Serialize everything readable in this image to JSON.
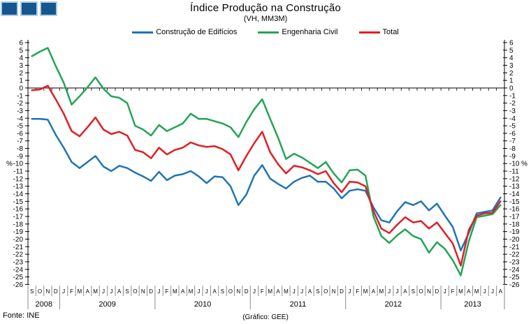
{
  "logo": {
    "count": 3,
    "fill": "#15568C",
    "border": "#AECDE4"
  },
  "title": "Índice Produção na Construção",
  "subtitle": "(VH, MM3M)",
  "legend": [
    {
      "label": "Construção de Edifícios",
      "color": "#1F74B4"
    },
    {
      "label": "Engenharia Civil",
      "color": "#23A455"
    },
    {
      "label": "Total",
      "color": "#E01F24"
    }
  ],
  "footer": {
    "source": "Fonte: INE",
    "credit": "(Gráfico: GEE)"
  },
  "chart_data": {
    "type": "line",
    "title": "Índice Produção na Construção",
    "subtitle": "(VH, MM3M)",
    "unit": "%",
    "ylim": [
      -26,
      6
    ],
    "ytick_step": 1,
    "grid": false,
    "legend_position": "top",
    "x_months": [
      "S",
      "O",
      "N",
      "D",
      "J",
      "F",
      "M",
      "A",
      "M",
      "J",
      "J",
      "A",
      "S",
      "O",
      "N",
      "D",
      "J",
      "F",
      "M",
      "A",
      "M",
      "J",
      "J",
      "A",
      "S",
      "O",
      "N",
      "D",
      "J",
      "F",
      "M",
      "A",
      "M",
      "J",
      "J",
      "A",
      "S",
      "O",
      "N",
      "D",
      "J",
      "F",
      "M",
      "A",
      "M",
      "J",
      "J",
      "A",
      "S",
      "O",
      "N",
      "D",
      "J",
      "F",
      "M",
      "A",
      "M",
      "J",
      "J",
      "A"
    ],
    "years": [
      {
        "label": "2008",
        "start": 0,
        "count": 4
      },
      {
        "label": "2009",
        "start": 4,
        "count": 12
      },
      {
        "label": "2010",
        "start": 16,
        "count": 12
      },
      {
        "label": "2011",
        "start": 28,
        "count": 12
      },
      {
        "label": "2012",
        "start": 40,
        "count": 12
      },
      {
        "label": "2013",
        "start": 52,
        "count": 8
      }
    ],
    "series": [
      {
        "name": "Construção de Edifícios",
        "color": "#1F74B4",
        "values": [
          -4.1,
          -4.1,
          -4.2,
          -6.2,
          -7.9,
          -9.8,
          -10.6,
          -9.8,
          -9.0,
          -10.4,
          -11.0,
          -10.3,
          -10.6,
          -11.2,
          -11.7,
          -12.3,
          -11.1,
          -12.2,
          -11.6,
          -11.4,
          -11.0,
          -11.7,
          -12.6,
          -11.7,
          -11.8,
          -13.0,
          -15.5,
          -14.1,
          -11.6,
          -10.2,
          -12.0,
          -12.7,
          -13.3,
          -12.4,
          -11.9,
          -11.6,
          -12.4,
          -12.4,
          -13.3,
          -14.6,
          -13.6,
          -13.4,
          -13.6,
          -15.8,
          -17.5,
          -17.8,
          -16.3,
          -15.1,
          -15.5,
          -15.0,
          -16.2,
          -15.3,
          -16.9,
          -18.4,
          -21.5,
          -19.2,
          -16.6,
          -16.4,
          -16.2,
          -14.5
        ]
      },
      {
        "name": "Engenharia Civil",
        "color": "#23A455",
        "values": [
          4.2,
          4.8,
          5.3,
          2.9,
          0.7,
          -2.2,
          -1.1,
          0.1,
          1.4,
          -0.1,
          -1.1,
          -1.3,
          -2.0,
          -5.0,
          -5.5,
          -6.3,
          -4.9,
          -5.7,
          -5.2,
          -4.7,
          -3.4,
          -4.1,
          -4.1,
          -4.4,
          -4.7,
          -5.2,
          -6.5,
          -4.5,
          -2.8,
          -1.5,
          -4.1,
          -6.6,
          -9.4,
          -8.7,
          -9.2,
          -9.9,
          -10.6,
          -9.8,
          -11.3,
          -12.5,
          -10.9,
          -10.8,
          -11.6,
          -17.0,
          -19.6,
          -20.5,
          -19.5,
          -18.7,
          -19.6,
          -20.0,
          -21.8,
          -20.4,
          -21.3,
          -22.8,
          -24.8,
          -20.3,
          -17.1,
          -16.9,
          -16.7,
          -15.5
        ]
      },
      {
        "name": "Total",
        "color": "#E01F24",
        "values": [
          -0.3,
          -0.2,
          0.3,
          -1.5,
          -3.4,
          -5.7,
          -6.4,
          -5.2,
          -3.9,
          -5.5,
          -6.1,
          -5.8,
          -6.3,
          -8.2,
          -8.5,
          -9.3,
          -7.9,
          -8.8,
          -8.2,
          -7.9,
          -7.2,
          -7.6,
          -7.8,
          -7.7,
          -8.1,
          -8.8,
          -10.9,
          -9.0,
          -7.3,
          -5.8,
          -8.5,
          -10.1,
          -11.3,
          -10.3,
          -10.5,
          -10.9,
          -11.4,
          -11.0,
          -12.6,
          -13.8,
          -12.4,
          -12.5,
          -13.0,
          -16.3,
          -18.6,
          -19.2,
          -18.1,
          -17.1,
          -17.8,
          -17.6,
          -18.6,
          -17.8,
          -19.2,
          -20.6,
          -23.5,
          -18.8,
          -16.9,
          -16.6,
          -16.5,
          -15.0
        ]
      }
    ]
  }
}
